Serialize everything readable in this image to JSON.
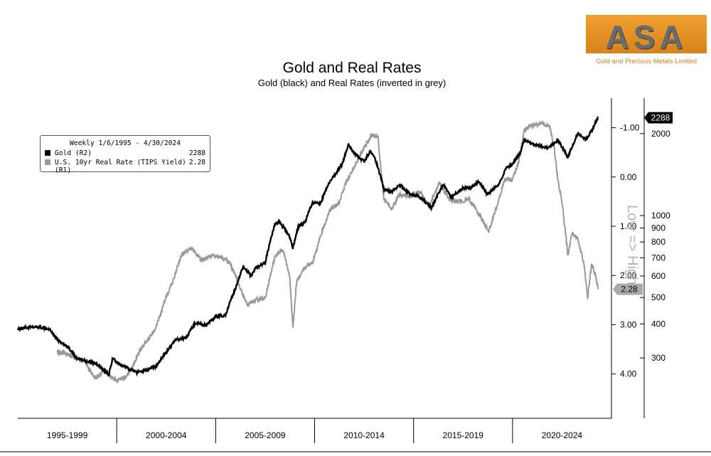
{
  "logo": {
    "text": "ASA",
    "subtitle": "Gold and Precious Metals Limited"
  },
  "legend": {
    "title": "Weekly 1/6/1995 - 4/30/2024",
    "entries": [
      {
        "label": "Gold (R2)",
        "value": "2288",
        "color": "#000000"
      },
      {
        "label": "U.S. 10yr Real Rate (TIPS Yield) (R1)",
        "value": "2.28",
        "color": "#999999"
      }
    ]
  },
  "annotation_vertical": "Low => High",
  "chart_data": {
    "type": "line",
    "title": "Gold and Real Rates",
    "subtitle": "Gold (black) and Real Rates (inverted in grey)",
    "x_period_labels": [
      "1995-1999",
      "2000-2004",
      "2005-2009",
      "2010-2014",
      "2015-2019",
      "2020-2024"
    ],
    "xlim": [
      1995.0,
      2025.0
    ],
    "grid": false,
    "legend_position": "top-left",
    "axes": {
      "r1": {
        "label": "U.S. 10yr Real Rate (TIPS Yield)",
        "inverted": true,
        "ticks": [
          "-1.00",
          "0.00",
          "1.00",
          "2.00",
          "3.00",
          "4.00"
        ],
        "tick_values": [
          -1,
          0,
          1,
          2,
          3,
          4
        ],
        "range": [
          -1.6,
          4.9
        ],
        "last_value_label": "2.28"
      },
      "r2": {
        "label": "Gold",
        "scale": "log",
        "ticks": [
          "2000",
          "1000",
          "900",
          "800",
          "700",
          "600",
          "500",
          "400",
          "300"
        ],
        "tick_values": [
          2000,
          1000,
          900,
          800,
          700,
          600,
          500,
          400,
          300
        ],
        "range": [
          180,
          2700
        ],
        "last_value_label": "2288"
      }
    },
    "series": [
      {
        "name": "Gold (R2)",
        "color": "#000000",
        "axis": "r2",
        "x": [
          1995.0,
          1996.0,
          1996.6,
          1997.0,
          1997.6,
          1998.0,
          1998.6,
          1999.0,
          1999.6,
          1999.8,
          2000.0,
          2000.6,
          2001.0,
          2001.5,
          2002.0,
          2002.5,
          2003.0,
          2003.5,
          2004.0,
          2004.5,
          2005.0,
          2005.5,
          2006.0,
          2006.4,
          2006.8,
          2007.0,
          2007.5,
          2008.0,
          2008.2,
          2008.7,
          2008.9,
          2009.2,
          2009.5,
          2009.9,
          2010.3,
          2010.8,
          2011.0,
          2011.4,
          2011.7,
          2012.0,
          2012.5,
          2012.8,
          2013.0,
          2013.3,
          2013.5,
          2013.9,
          2014.3,
          2014.8,
          2015.3,
          2015.9,
          2016.5,
          2016.9,
          2017.5,
          2017.9,
          2018.3,
          2018.7,
          2019.3,
          2019.7,
          2020.0,
          2020.4,
          2020.6,
          2021.0,
          2021.4,
          2021.8,
          2022.3,
          2022.8,
          2023.3,
          2023.7,
          2024.0,
          2024.2,
          2024.33
        ],
        "values": [
          385,
          390,
          384,
          350,
          325,
          298,
          290,
          285,
          260,
          300,
          288,
          274,
          265,
          270,
          280,
          315,
          350,
          355,
          405,
          395,
          425,
          430,
          540,
          650,
          600,
          640,
          670,
          930,
          950,
          850,
          760,
          920,
          940,
          1120,
          1110,
          1350,
          1400,
          1550,
          1820,
          1700,
          1580,
          1720,
          1660,
          1420,
          1250,
          1220,
          1300,
          1200,
          1170,
          1070,
          1300,
          1170,
          1260,
          1270,
          1330,
          1200,
          1290,
          1500,
          1540,
          1700,
          1900,
          1830,
          1800,
          1780,
          1890,
          1640,
          2000,
          1900,
          2050,
          2200,
          2288
        ]
      },
      {
        "name": "U.S. 10yr Real Rate (TIPS Yield) (R1)",
        "color": "#999999",
        "axis": "r1",
        "x": [
          1997.0,
          1997.6,
          1998.0,
          1998.4,
          1998.9,
          1999.3,
          1999.6,
          2000.0,
          2000.5,
          2000.8,
          2001.2,
          2001.6,
          2002.0,
          2002.4,
          2002.8,
          2003.3,
          2003.8,
          2004.3,
          2004.8,
          2005.2,
          2005.7,
          2006.2,
          2006.6,
          2007.0,
          2007.5,
          2008.0,
          2008.4,
          2008.75,
          2008.9,
          2009.1,
          2009.5,
          2009.9,
          2010.3,
          2010.8,
          2011.2,
          2011.6,
          2012.0,
          2012.5,
          2012.9,
          2013.2,
          2013.5,
          2013.9,
          2014.3,
          2014.8,
          2015.3,
          2015.8,
          2016.3,
          2016.8,
          2017.3,
          2017.8,
          2018.3,
          2018.8,
          2019.2,
          2019.6,
          2020.0,
          2020.3,
          2020.6,
          2021.0,
          2021.5,
          2021.9,
          2022.1,
          2022.3,
          2022.5,
          2022.8,
          2023.0,
          2023.3,
          2023.6,
          2023.8,
          2024.0,
          2024.2,
          2024.33
        ],
        "values": [
          3.55,
          3.6,
          3.7,
          3.75,
          4.1,
          3.95,
          4.0,
          4.15,
          4.05,
          3.85,
          3.5,
          3.3,
          3.05,
          2.55,
          2.15,
          1.55,
          1.45,
          1.7,
          1.6,
          1.6,
          1.75,
          2.2,
          2.6,
          2.5,
          2.45,
          1.6,
          1.45,
          2.05,
          3.05,
          2.1,
          1.85,
          1.75,
          1.2,
          0.65,
          0.55,
          0.1,
          -0.2,
          -0.6,
          -0.85,
          -0.8,
          0.45,
          0.65,
          0.35,
          0.4,
          0.3,
          0.6,
          0.1,
          0.45,
          0.5,
          0.45,
          0.75,
          1.1,
          0.6,
          0.05,
          0.05,
          -0.3,
          -0.95,
          -1.05,
          -1.1,
          -1.0,
          -0.6,
          0.1,
          0.5,
          1.6,
          1.15,
          1.25,
          1.75,
          2.45,
          1.75,
          2.0,
          2.28
        ]
      }
    ]
  }
}
